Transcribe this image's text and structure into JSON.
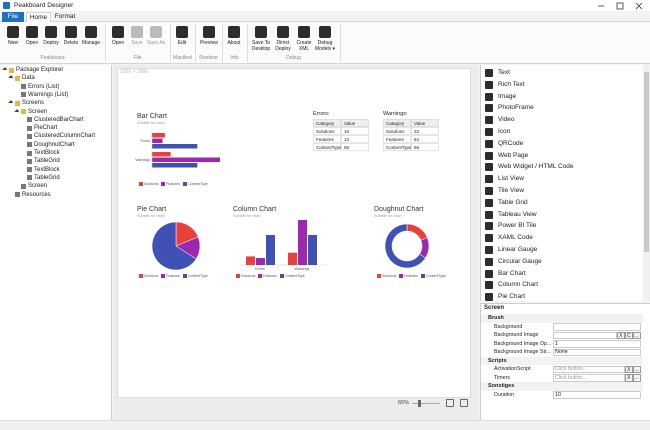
{
  "window": {
    "title": "Peakboard Designer"
  },
  "ribbon": {
    "tabs": [
      "File",
      "Home",
      "Format"
    ],
    "groups": [
      {
        "label": "Peakboard",
        "buttons": [
          "New",
          "Open",
          "Deploy",
          "Delete",
          "Manage"
        ]
      },
      {
        "label": "File",
        "buttons": [
          "Open",
          "Save",
          "Save As"
        ]
      },
      {
        "label": "Manifest",
        "buttons": [
          "Edit"
        ]
      },
      {
        "label": "Runtime",
        "buttons": [
          "Preview"
        ]
      },
      {
        "label": "Info",
        "buttons": [
          "About"
        ]
      },
      {
        "label": "Debug",
        "buttons": [
          "Save To Desktop",
          "Direct Deploy",
          "Create XML",
          "Debug Models ▾"
        ]
      }
    ]
  },
  "explorer": {
    "tree": [
      {
        "label": "Package Explorer",
        "children": [
          {
            "label": "Data",
            "children": [
              {
                "label": "Errors (List)"
              },
              {
                "label": "Warnings (List)"
              }
            ]
          },
          {
            "label": "Screens",
            "children": [
              {
                "label": "Screen",
                "children": [
                  {
                    "label": "ClusteredBarChart"
                  },
                  {
                    "label": "PieChart"
                  },
                  {
                    "label": "ClusteredColumnChart"
                  },
                  {
                    "label": "DoughnutChart"
                  },
                  {
                    "label": "TextBlock"
                  },
                  {
                    "label": "TableGrid"
                  },
                  {
                    "label": "TextBlock"
                  },
                  {
                    "label": "TableGrid"
                  }
                ]
              },
              {
                "label": "Screen"
              }
            ]
          },
          {
            "label": "Resources"
          }
        ]
      }
    ]
  },
  "canvas": {
    "size_label": "1920 × 1080",
    "zoom": "65%",
    "dataset": {
      "categories": [
        "Errors",
        "Warnings"
      ],
      "series": [
        {
          "name": "Solutions",
          "color": "#e8413c",
          "values": [
            16,
            23
          ]
        },
        {
          "name": "Features",
          "color": "#9c27b0",
          "values": [
            13,
            84
          ]
        },
        {
          "name": "ContentType",
          "color": "#3f51b5",
          "values": [
            56,
            56
          ]
        }
      ]
    },
    "charts": [
      {
        "type": "bar",
        "title": "Bar Chart",
        "subtitle": "Subtitle for chart"
      },
      {
        "type": "pie",
        "title": "Pie Chart",
        "subtitle": "Subtitle for chart"
      },
      {
        "type": "column",
        "title": "Column Chart",
        "subtitle": "Subtitle for chart"
      },
      {
        "type": "doughnut",
        "title": "Doughnut Chart",
        "subtitle": "Subtitle for chart"
      }
    ],
    "tables": [
      {
        "title": "Errors:",
        "columns": [
          "Category",
          "Value"
        ],
        "rows": [
          [
            "Solutions",
            16
          ],
          [
            "Features",
            13
          ],
          [
            "ContentType",
            56
          ]
        ]
      },
      {
        "title": "Warnings:",
        "columns": [
          "Category",
          "Value"
        ],
        "rows": [
          [
            "Solutions",
            23
          ],
          [
            "Features",
            84
          ],
          [
            "ContentType",
            56
          ]
        ]
      }
    ]
  },
  "toolbox": {
    "items": [
      "Text",
      "Rich Text",
      "Image",
      "PhotoFrame",
      "Video",
      "Icon",
      "QRCode",
      "Web Page",
      "Web Widget / HTML Code",
      "List View",
      "Tile View",
      "Table Grid",
      "Tableau View",
      "Power BI Tile",
      "XAML Code",
      "Linear Gauge",
      "Circular Gauge",
      "Bar Chart",
      "Column Chart",
      "Pie Chart"
    ]
  },
  "properties": {
    "title": "Screen",
    "groups": [
      {
        "label": "Brush",
        "rows": [
          {
            "name": "Background"
          },
          {
            "name": "Background Image",
            "buttons": [
              "X",
              "C",
              "..."
            ]
          },
          {
            "name": "Background Image Op...",
            "value": "1"
          },
          {
            "name": "Background Image Str...",
            "value": "None"
          }
        ]
      },
      {
        "label": "Scripts",
        "rows": [
          {
            "name": "ActivationScript",
            "value": "Click button...",
            "buttons": [
              "X",
              "..."
            ]
          },
          {
            "name": "Timers",
            "value": "Click button...",
            "buttons": [
              "X",
              "..."
            ]
          }
        ]
      },
      {
        "label": "Sonstiges",
        "rows": [
          {
            "name": "Duration",
            "value": "10"
          }
        ]
      }
    ]
  }
}
